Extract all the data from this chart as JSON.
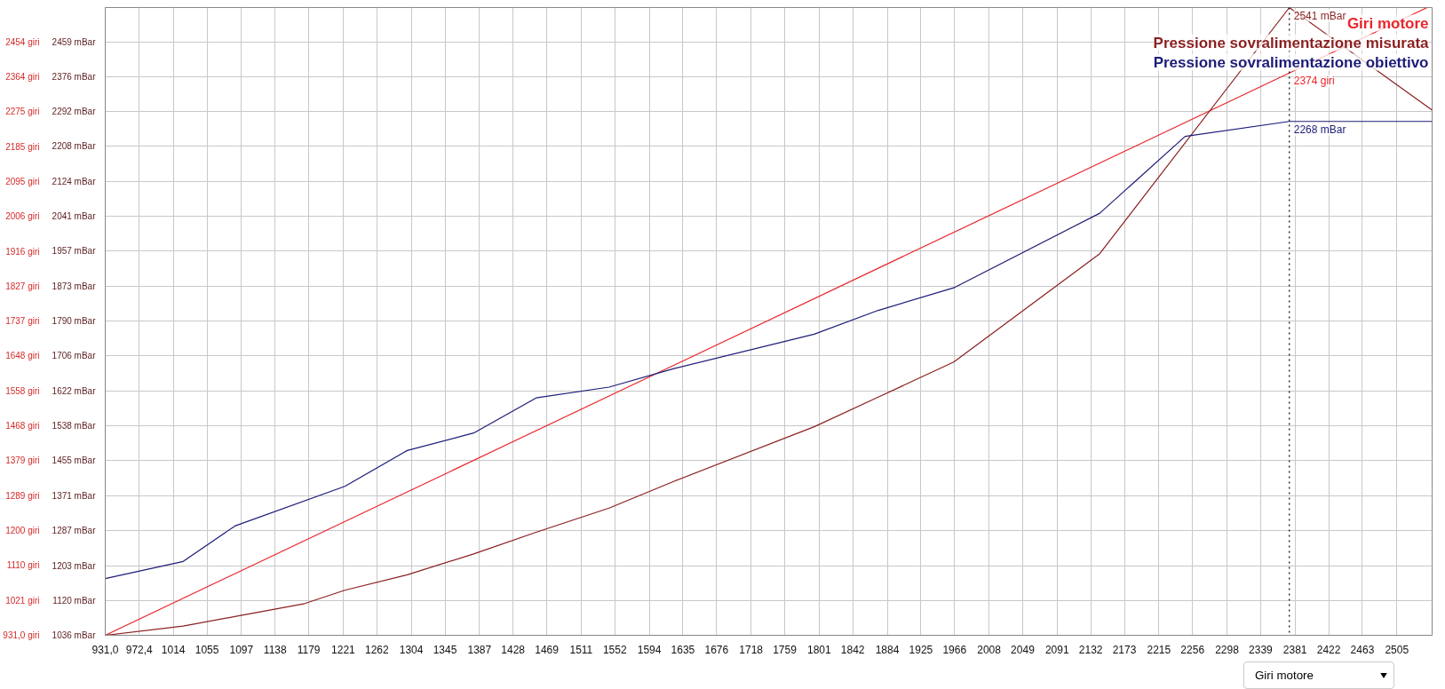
{
  "chart_data": {
    "type": "line",
    "legend": "top right",
    "grid": true,
    "line_style": "solid",
    "xlim": [
      931,
      2548
    ],
    "xticks": [
      {
        "value": 931,
        "label": "931,0"
      },
      {
        "value": 972.4,
        "label": "972,4"
      },
      1014,
      1055,
      1097,
      1138,
      1179,
      1221,
      1262,
      1304,
      1345,
      1387,
      1428,
      1469,
      1511,
      1552,
      1594,
      1635,
      1676,
      1718,
      1759,
      1801,
      1842,
      1884,
      1925,
      1966,
      2008,
      2049,
      2091,
      2132,
      2173,
      2215,
      2256,
      2298,
      2339,
      2381,
      2422,
      2463,
      2505
    ],
    "ylim": [
      1036,
      2541
    ],
    "yticks": [
      {
        "value": 1036,
        "label": "1036 mBar"
      },
      {
        "value": 1120,
        "label": "1120 mBar"
      },
      {
        "value": 1203,
        "label": "1203 mBar"
      },
      {
        "value": 1287,
        "label": "1287 mBar"
      },
      {
        "value": 1371,
        "label": "1371 mBar"
      },
      {
        "value": 1455,
        "label": "1455 mBar"
      },
      {
        "value": 1538,
        "label": "1538 mBar"
      },
      {
        "value": 1622,
        "label": "1622 mBar"
      },
      {
        "value": 1706,
        "label": "1706 mBar"
      },
      {
        "value": 1790,
        "label": "1790 mBar"
      },
      {
        "value": 1873,
        "label": "1873 mBar"
      },
      {
        "value": 1957,
        "label": "1957 mBar"
      },
      {
        "value": 2041,
        "label": "2041 mBar"
      },
      {
        "value": 2124,
        "label": "2124 mBar"
      },
      {
        "value": 2208,
        "label": "2208 mBar"
      },
      {
        "value": 2292,
        "label": "2292 mBar"
      },
      {
        "value": 2376,
        "label": "2376 mBar"
      },
      {
        "value": 2459,
        "label": "2459 mBar"
      }
    ],
    "y2lim": [
      931,
      2542
    ],
    "y2ticks": [
      {
        "value": 931,
        "label": "931,0 giri"
      },
      {
        "value": 1021,
        "label": "1021 giri"
      },
      {
        "value": 1110,
        "label": "1110 giri"
      },
      {
        "value": 1200,
        "label": "1200 giri"
      },
      {
        "value": 1289,
        "label": "1289 giri"
      },
      {
        "value": 1379,
        "label": "1379 giri"
      },
      {
        "value": 1468,
        "label": "1468 giri"
      },
      {
        "value": 1558,
        "label": "1558 giri"
      },
      {
        "value": 1648,
        "label": "1648 giri"
      },
      {
        "value": 1737,
        "label": "1737 giri"
      },
      {
        "value": 1827,
        "label": "1827 giri"
      },
      {
        "value": 1916,
        "label": "1916 giri"
      },
      {
        "value": 2006,
        "label": "2006 giri"
      },
      {
        "value": 2095,
        "label": "2095 giri"
      },
      {
        "value": 2185,
        "label": "2185 giri"
      },
      {
        "value": 2275,
        "label": "2275 giri"
      },
      {
        "value": 2364,
        "label": "2364 giri"
      },
      {
        "value": 2454,
        "label": "2454 giri"
      }
    ],
    "series": [
      {
        "name": "Giri motore",
        "color": "#e8262c",
        "axis": "y2",
        "x": [
          931,
          2542
        ],
        "values": [
          931,
          2542
        ]
      },
      {
        "name": "Pressione sovralimentazione misurata",
        "color": "#8b1f1f",
        "x": [
          931,
          1026,
          1089,
          1174,
          1223,
          1299,
          1380,
          1456,
          1545,
          1625,
          1795,
          1873,
          1965,
          2143,
          2374,
          2548
        ],
        "values": [
          1036,
          1058,
          1081,
          1112,
          1144,
          1181,
          1231,
          1283,
          1341,
          1406,
          1536,
          1607,
          1691,
          1951,
          2541,
          2295
        ]
      },
      {
        "name": "Pressione sovralimentazione obiettivo",
        "color": "#1c1c78",
        "x": [
          931,
          1026,
          1089,
          1223,
          1299,
          1380,
          1456,
          1545,
          1625,
          1795,
          1873,
          1965,
          2143,
          2247,
          2374,
          2548
        ],
        "values": [
          1172,
          1213,
          1298,
          1393,
          1479,
          1521,
          1605,
          1631,
          1676,
          1758,
          1815,
          1869,
          2048,
          2232,
          2268,
          2268
        ]
      }
    ],
    "ref_lines": [
      {
        "axis": "x",
        "value": 2374,
        "label": null,
        "color": "#000000",
        "line_style": "dotted"
      }
    ],
    "annotations": [
      "2541 mBar",
      "2374 giri",
      "2268 mBar",
      "Giri motore"
    ]
  }
}
